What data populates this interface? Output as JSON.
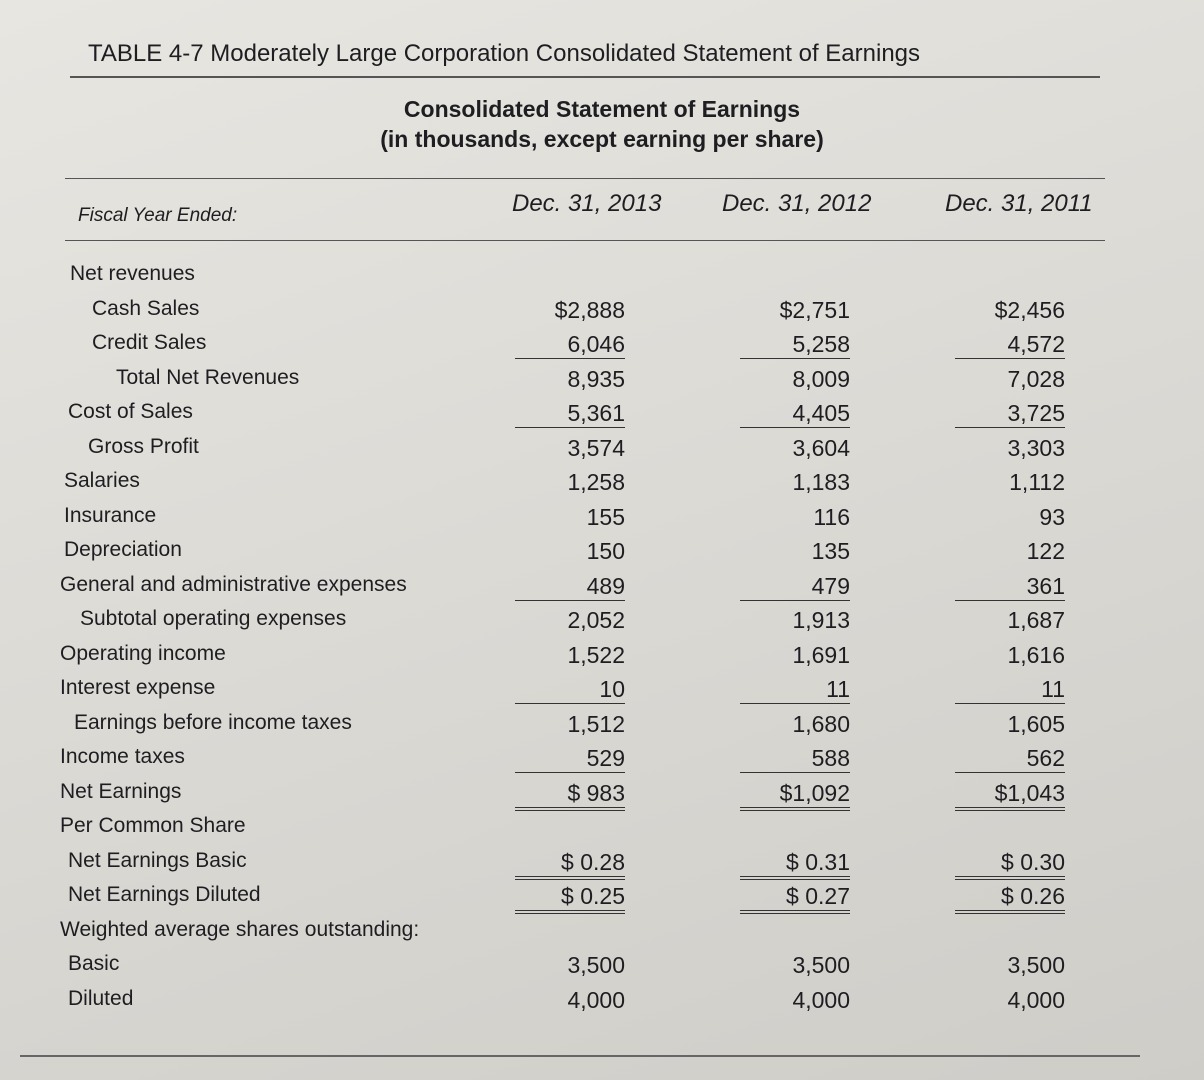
{
  "header": {
    "title": "TABLE 4-7 Moderately Large Corporation Consolidated Statement of Earnings",
    "subtitle": [
      "Consolidated Statement of Earnings",
      "(in thousands, except earning per share)"
    ]
  },
  "table": {
    "columns": [
      "Fiscal Year Ended:",
      "Dec. 31, 2013",
      "Dec. 31, 2012",
      "Dec. 31, 2011"
    ],
    "rows": [
      {
        "label": "Net revenues"
      },
      {
        "label": "Cash Sales",
        "values": [
          "$2,888",
          "$2,751",
          "$2,456"
        ]
      },
      {
        "label": "Credit Sales",
        "values": [
          "6,046",
          "5,258",
          "4,572"
        ]
      },
      {
        "label": "Total Net Revenues",
        "values": [
          "8,935",
          "8,009",
          "7,028"
        ]
      },
      {
        "label": "Cost of Sales",
        "values": [
          "5,361",
          "4,405",
          "3,725"
        ]
      },
      {
        "label": "Gross Profit",
        "values": [
          "3,574",
          "3,604",
          "3,303"
        ]
      },
      {
        "label": "Salaries",
        "values": [
          "1,258",
          "1,183",
          "1,112"
        ]
      },
      {
        "label": "Insurance",
        "values": [
          "155",
          "116",
          "93"
        ]
      },
      {
        "label": "Depreciation",
        "values": [
          "150",
          "135",
          "122"
        ]
      },
      {
        "label": "General and administrative expenses",
        "values": [
          "489",
          "479",
          "361"
        ]
      },
      {
        "label": "Subtotal operating expenses",
        "values": [
          "2,052",
          "1,913",
          "1,687"
        ]
      },
      {
        "label": "Operating income",
        "values": [
          "1,522",
          "1,691",
          "1,616"
        ]
      },
      {
        "label": "Interest expense",
        "values": [
          "10",
          "11",
          "11"
        ]
      },
      {
        "label": "Earnings before income taxes",
        "values": [
          "1,512",
          "1,680",
          "1,605"
        ]
      },
      {
        "label": "Income taxes",
        "values": [
          "529",
          "588",
          "562"
        ]
      },
      {
        "label": "Net Earnings",
        "values": [
          "$ 983",
          "$1,092",
          "$1,043"
        ]
      },
      {
        "label": "Per Common Share"
      },
      {
        "label": "Net Earnings Basic",
        "values": [
          "$ 0.28",
          "$ 0.31",
          "$ 0.30"
        ]
      },
      {
        "label": "Net Earnings Diluted",
        "values": [
          "$ 0.25",
          "$ 0.27",
          "$ 0.26"
        ]
      },
      {
        "label": "Weighted average shares outstanding:"
      },
      {
        "label": "Basic",
        "values": [
          "3,500",
          "3,500",
          "3,500"
        ]
      },
      {
        "label": "Diluted",
        "values": [
          "4,000",
          "4,000",
          "4,000"
        ]
      }
    ]
  }
}
